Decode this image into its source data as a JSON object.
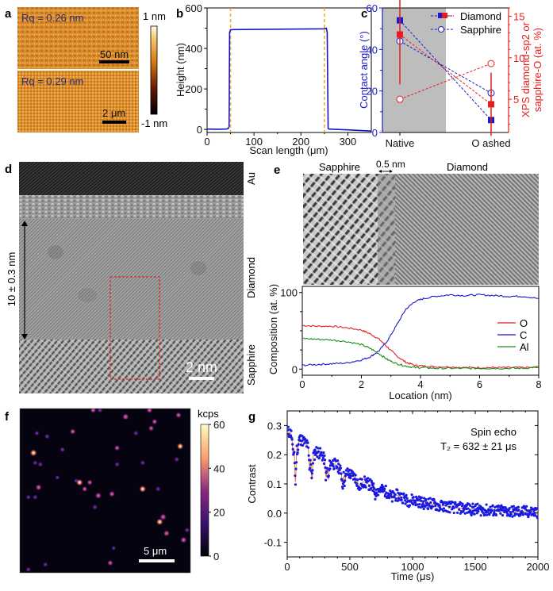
{
  "panels": {
    "a": {
      "label": "a",
      "top": {
        "rq_text": "Rq = 0.26 nm",
        "scalebar": "50 nm"
      },
      "bottom": {
        "rq_text": "Rq = 0.29 nm",
        "scalebar": "2 μm"
      },
      "colorbar": {
        "max_label": "1 nm",
        "min_label": "-1 nm"
      }
    },
    "d": {
      "label": "d",
      "layer_labels": [
        "Au",
        "Diamond",
        "Sapphire"
      ],
      "thickness_text": "10 ± 0.3 nm",
      "scalebar": "2 nm"
    },
    "e": {
      "label": "e",
      "header_left": "Sapphire",
      "header_mid": "0.5 nm",
      "header_right": "Diamond"
    },
    "f": {
      "label": "f",
      "scalebar": "5 μm",
      "colorbar": {
        "unit": "kcps",
        "ticks": [
          "60",
          "40",
          "20",
          "0"
        ],
        "range": [
          0,
          60
        ]
      },
      "spots": [
        [
          0.08,
          0.27,
          0.9
        ],
        [
          0.11,
          0.48,
          0.6
        ],
        [
          0.12,
          0.34,
          0.35
        ],
        [
          0.1,
          0.15,
          0.3
        ],
        [
          0.16,
          0.17,
          0.35
        ],
        [
          0.05,
          0.54,
          0.3
        ],
        [
          0.09,
          0.54,
          0.35
        ],
        [
          0.22,
          0.42,
          0.25
        ],
        [
          0.25,
          0.25,
          0.4
        ],
        [
          0.31,
          0.14,
          0.5
        ],
        [
          0.33,
          0.44,
          0.2
        ],
        [
          0.35,
          0.45,
          0.85
        ],
        [
          0.41,
          0.45,
          0.45
        ],
        [
          0.38,
          0.49,
          0.45
        ],
        [
          0.46,
          0.53,
          0.65
        ],
        [
          0.44,
          0.6,
          0.4
        ],
        [
          0.54,
          0.52,
          0.55
        ],
        [
          0.57,
          0.24,
          0.45
        ],
        [
          0.57,
          0.34,
          0.3
        ],
        [
          0.62,
          0.05,
          0.7
        ],
        [
          0.68,
          0.15,
          0.35
        ],
        [
          0.72,
          0.33,
          0.3
        ],
        [
          0.77,
          0.12,
          0.45
        ],
        [
          0.79,
          0.08,
          0.45
        ],
        [
          0.72,
          0.49,
          0.85
        ],
        [
          0.81,
          0.49,
          0.35
        ],
        [
          0.82,
          0.69,
          0.85
        ],
        [
          0.86,
          0.76,
          0.6
        ],
        [
          0.93,
          0.04,
          0.5
        ],
        [
          0.94,
          0.23,
          0.8
        ],
        [
          0.92,
          0.31,
          0.4
        ],
        [
          0.98,
          0.74,
          0.35
        ],
        [
          0.96,
          0.8,
          0.65
        ],
        [
          0.55,
          0.85,
          0.2
        ],
        [
          0.43,
          0.01,
          0.5
        ],
        [
          0.47,
          0.01,
          0.4
        ],
        [
          0.76,
          0.01,
          0.5
        ],
        [
          0.15,
          0.95,
          0.3
        ],
        [
          0.05,
          0.98,
          0.3
        ],
        [
          0.53,
          0.94,
          0.5
        ],
        [
          0.84,
          0.66,
          0.7
        ],
        [
          0.09,
          0.33,
          0.25
        ]
      ]
    }
  },
  "chart_data": [
    {
      "id": "b",
      "type": "line",
      "label": "b",
      "title": "",
      "xlabel": "Scan length (μm)",
      "ylabel": "Height (nm)",
      "xlim": [
        0,
        350
      ],
      "ylim": [
        -15,
        600
      ],
      "xticks": [
        0,
        100,
        200,
        300
      ],
      "yticks": [
        0,
        200,
        400,
        600
      ],
      "series": [
        {
          "name": "height profile",
          "color": "#1515c8",
          "x": [
            0,
            20,
            40,
            45,
            47,
            48,
            50,
            55,
            100,
            150,
            200,
            250,
            254,
            256,
            258,
            260,
            300,
            350
          ],
          "y": [
            2,
            1,
            2,
            4,
            15,
            480,
            492,
            493,
            494,
            495,
            496,
            497,
            500,
            480,
            5,
            2,
            -2,
            -8
          ]
        }
      ],
      "vlines": {
        "x": [
          50,
          250
        ],
        "color": "#f5a623"
      }
    },
    {
      "id": "c",
      "type": "scatter",
      "label": "c",
      "categories": [
        "Native",
        "O ashed"
      ],
      "ylabel_left": "Contact angle (°)",
      "ylabel_right": "XPS diamond-sp2 or sapphire-O (at. %)",
      "ylim_left": [
        0,
        60
      ],
      "ylim_right": [
        1,
        16
      ],
      "yticks_left": [
        0,
        20,
        40,
        60
      ],
      "yticks_right": [
        5,
        10,
        15
      ],
      "legend": [
        "Diamond",
        "Sapphire"
      ],
      "legend_position": "top-right",
      "shaded_region": "Native",
      "series": [
        {
          "name": "Diamond contact angle",
          "axis": "left",
          "color": "#1a1acc",
          "marker": "filled-square",
          "values": [
            54,
            6
          ]
        },
        {
          "name": "Sapphire contact angle",
          "axis": "left",
          "color": "#1a1acc",
          "marker": "open-circle",
          "values": [
            44,
            19
          ]
        },
        {
          "name": "Diamond XPS sp2",
          "axis": "right",
          "color": "#e81c1c",
          "marker": "filled-square",
          "values": [
            12.8,
            4.4
          ],
          "errors": [
            6.0,
            3.8
          ]
        },
        {
          "name": "Sapphire XPS O",
          "axis": "right",
          "color": "#e81c1c",
          "marker": "open-circle",
          "values": [
            5.0,
            9.3
          ]
        }
      ]
    },
    {
      "id": "e",
      "type": "line",
      "label": "e-profile",
      "xlabel": "Location (nm)",
      "ylabel": "Composition (at. %)",
      "xlim": [
        0,
        8
      ],
      "ylim": [
        -8,
        108
      ],
      "xticks": [
        0,
        2,
        4,
        6,
        8
      ],
      "yticks": [
        0,
        100
      ],
      "legend": [
        "O",
        "C",
        "Al"
      ],
      "legend_position": "right",
      "x": [
        0,
        0.5,
        1,
        1.5,
        2,
        2.3,
        2.6,
        2.9,
        3.2,
        3.5,
        3.8,
        4.1,
        4.5,
        5,
        5.5,
        6,
        6.5,
        7,
        7.5,
        8
      ],
      "series": [
        {
          "name": "O",
          "color": "#e02020",
          "values": [
            57,
            56,
            56,
            54,
            51,
            46,
            39,
            28,
            17,
            9,
            5,
            4,
            3,
            3,
            2,
            2,
            2,
            2,
            2,
            2
          ]
        },
        {
          "name": "C",
          "color": "#1818d0",
          "values": [
            5,
            6,
            7,
            8,
            12,
            16,
            24,
            38,
            58,
            78,
            88,
            92,
            95,
            97,
            96,
            97,
            96,
            95,
            95,
            92
          ]
        },
        {
          "name": "Al",
          "color": "#1a8c1a",
          "values": [
            40,
            39,
            38,
            36,
            32,
            27,
            20,
            12,
            7,
            4,
            2,
            2,
            1,
            1,
            1,
            1,
            1,
            1,
            1,
            3
          ]
        }
      ]
    },
    {
      "id": "g",
      "type": "scatter",
      "label": "g",
      "xlabel": "Time (μs)",
      "ylabel": "Contrast",
      "xlim": [
        0,
        2000
      ],
      "ylim": [
        -0.15,
        0.35
      ],
      "xticks": [
        0,
        500,
        1000,
        1500,
        2000
      ],
      "yticks": [
        -0.1,
        0.0,
        0.1,
        0.2,
        0.3
      ],
      "annotation": [
        "Spin echo",
        "T₂ = 632 ± 21 μs"
      ],
      "fit": {
        "name": "fit",
        "color": "#e07a3c",
        "T2_us": 632,
        "amplitude": 0.28,
        "revival_period_us": 128
      },
      "series": [
        {
          "name": "data",
          "color": "#1a1ae0",
          "description": "decaying spin-echo data with collapses near multiples of ~128 μs"
        }
      ]
    }
  ]
}
